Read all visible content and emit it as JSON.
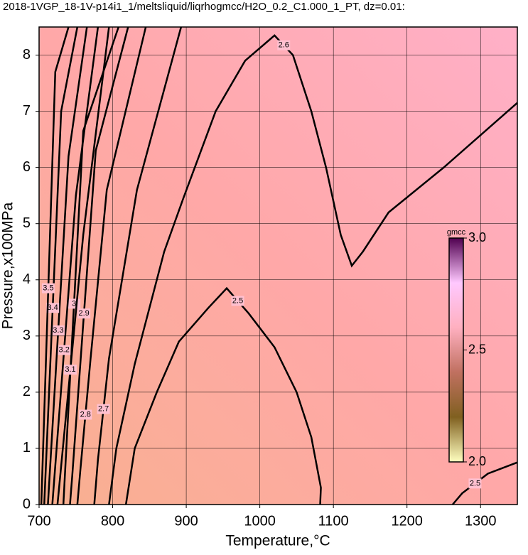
{
  "chart_data": {
    "type": "contour",
    "title": "2018-1VGP_18-1V-p14i1_1/meltsliquid/liqrhogmcc/H2O_0.2_C1.000_1_PT, dz=0.01:",
    "x_label": "Temperature,°C",
    "y_label": "Pressure,x100MPa",
    "xlim": [
      700,
      1350
    ],
    "ylim": [
      0,
      8.5
    ],
    "xticks": [
      700,
      800,
      900,
      1000,
      1100,
      1200,
      1300
    ],
    "yticks": [
      0,
      1,
      2,
      3,
      4,
      5,
      6,
      7,
      8
    ],
    "grid": true,
    "contours": [
      {
        "level": 2.5,
        "x": [
          818,
          830,
          860,
          890,
          930,
          955,
          985,
          1020,
          1050,
          1070,
          1083,
          1082
        ],
        "y": [
          0,
          1,
          2,
          2.9,
          3.5,
          3.85,
          3.4,
          2.8,
          2.0,
          1.2,
          0.3,
          0
        ]
      },
      {
        "level": 2.5,
        "x": [
          1262,
          1275,
          1310,
          1350
        ],
        "y": [
          0,
          0.2,
          0.55,
          0.75
        ]
      },
      {
        "level": 2.6,
        "x": [
          795,
          805,
          830,
          870,
          896,
          940,
          980,
          1020,
          1045,
          1070,
          1090,
          1110,
          1125,
          1140,
          1175,
          1250,
          1350
        ],
        "y": [
          0,
          1,
          2.5,
          4.5,
          5.45,
          7,
          7.9,
          8.35,
          8.0,
          7.0,
          6.0,
          4.8,
          4.25,
          4.5,
          5.2,
          6.0,
          7.15
        ]
      },
      {
        "level": 2.7,
        "x": [
          775,
          780,
          795,
          833,
          893
        ],
        "y": [
          0,
          0.8,
          2.6,
          5.6,
          8.5
        ]
      },
      {
        "level": 2.8,
        "x": [
          752,
          756,
          770,
          792,
          845
        ],
        "y": [
          0,
          0.6,
          2.6,
          5.6,
          8.5
        ]
      },
      {
        "level": 2.9,
        "x": [
          742,
          745,
          777,
          821
        ],
        "y": [
          0,
          0.5,
          6.3,
          8.5
        ]
      },
      {
        "level": 3,
        "x": [
          733,
          735,
          760,
          808
        ],
        "y": [
          0,
          0.5,
          6.65,
          8.5
        ]
      },
      {
        "level": 3.1,
        "x": [
          725,
          760,
          795
        ],
        "y": [
          0,
          4.8,
          8.5
        ]
      },
      {
        "level": 3.2,
        "x": [
          718,
          750,
          780
        ],
        "y": [
          0,
          5.5,
          8.5
        ]
      },
      {
        "level": 3.3,
        "x": [
          712,
          740,
          765
        ],
        "y": [
          0,
          6.2,
          8.5
        ]
      },
      {
        "level": 3.4,
        "x": [
          707,
          730,
          752
        ],
        "y": [
          0,
          7,
          8.5
        ]
      },
      {
        "level": 3.5,
        "x": [
          703,
          722,
          740
        ],
        "y": [
          0,
          7.7,
          8.5
        ]
      }
    ],
    "line_color": "#000000",
    "colorbar": {
      "label": "gmcc",
      "lim": [
        2,
        3
      ],
      "ticks": [
        {
          "value": 2,
          "label": "2.0"
        },
        2.5,
        {
          "value": 3,
          "label": "3.0"
        }
      ],
      "colors": [
        "#ffffc0",
        "#806020",
        "#c07060",
        "#ffb0c0",
        "#ffc8ff",
        "#500050"
      ]
    }
  }
}
